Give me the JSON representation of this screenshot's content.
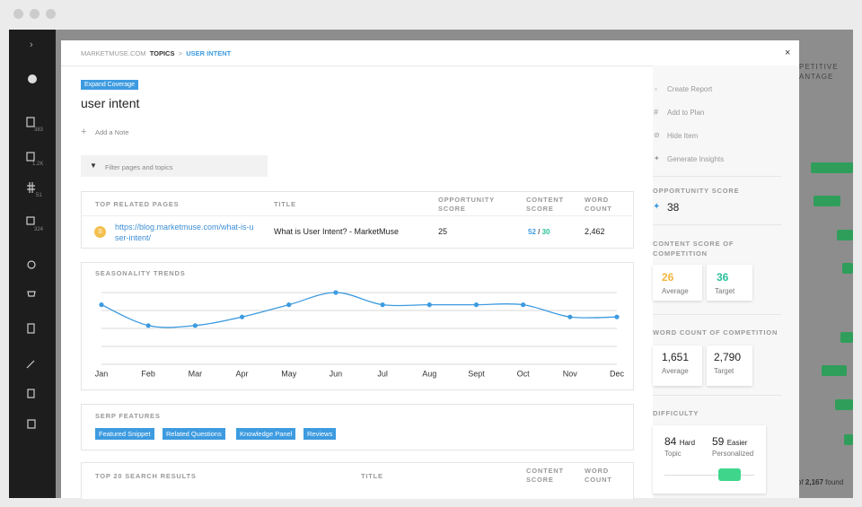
{
  "sidebar_counts": [
    "383",
    "1.2K",
    "51",
    "324"
  ],
  "background": {
    "heading": [
      "PETITIVE",
      "ANTAGE"
    ],
    "found_prefix": "of",
    "found_count": "2,167",
    "found_suffix": "found"
  },
  "breadcrumb": {
    "site": "MARKETMUSE.COM",
    "section": "TOPICS",
    "separator": ">",
    "current": "USER INTENT"
  },
  "close": "×",
  "badge": "Expand Coverage",
  "topic": "user intent",
  "add_note": "Add a Note",
  "filter_placeholder": "Filter pages and topics",
  "related_pages": {
    "headers": [
      "TOP RELATED PAGES",
      "TITLE",
      "OPPORTUNITY SCORE",
      "CONTENT SCORE",
      "WORD COUNT"
    ],
    "rows": [
      {
        "icon": "S",
        "url": "https://blog.marketmuse.com/what-is-user-intent/",
        "title": "What is User Intent? - MarketMuse",
        "opportunity": "25",
        "content_score": "52",
        "content_separator": "/",
        "content_target": "30",
        "word_count": "2,462"
      }
    ]
  },
  "chart_data": {
    "type": "line",
    "title": "SEASONALITY TRENDS",
    "categories": [
      "Jan",
      "Feb",
      "Mar",
      "Apr",
      "May",
      "Jun",
      "Jul",
      "Aug",
      "Sept",
      "Oct",
      "Nov",
      "Dec"
    ],
    "values": [
      83,
      54,
      54,
      66,
      83,
      100,
      83,
      83,
      83,
      83,
      66,
      66
    ],
    "color": "#3d9be0",
    "ylim": [
      0,
      100
    ],
    "gridlines": [
      0,
      25,
      50,
      75,
      100
    ]
  },
  "serp": {
    "title": "SERP FEATURES",
    "tags": [
      "Featured Snippet",
      "Related Questions",
      "Knowledge Panel",
      "Reviews"
    ]
  },
  "search_results": {
    "headers": [
      "TOP 20 SEARCH RESULTS",
      "TITLE",
      "CONTENT SCORE",
      "WORD COUNT"
    ]
  },
  "actions": [
    "Create Report",
    "Add to Plan",
    "Hide Item",
    "Generate Insights"
  ],
  "opportunity": {
    "title": "OPPORTUNITY SCORE",
    "value": "38"
  },
  "content_competition": {
    "title": "CONTENT SCORE OF COMPETITION",
    "average": "26",
    "average_label": "Average",
    "target": "36",
    "target_label": "Target"
  },
  "word_competition": {
    "title": "WORD COUNT OF COMPETITION",
    "average": "1,651",
    "average_label": "Average",
    "target": "2,790",
    "target_label": "Target"
  },
  "difficulty": {
    "title": "DIFFICULTY",
    "topic_value": "84",
    "topic_level": "Hard",
    "topic_label": "Topic",
    "personal_value": "59",
    "personal_level": "Easier",
    "personal_label": "Personalized"
  }
}
